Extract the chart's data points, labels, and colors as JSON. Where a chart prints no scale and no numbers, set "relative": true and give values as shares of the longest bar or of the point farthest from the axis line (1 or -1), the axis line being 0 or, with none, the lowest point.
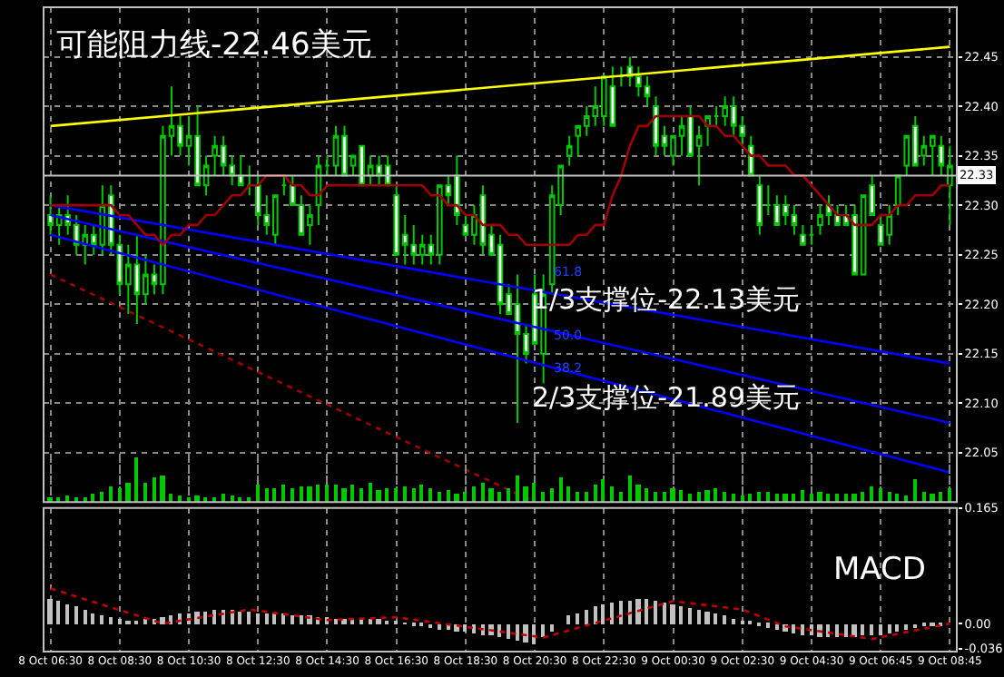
{
  "chart_data": [
    {
      "type": "candlestick",
      "color": "#00c800",
      "categories": [
        null,
        null,
        null,
        null,
        null,
        null,
        null,
        null,
        null,
        null,
        null,
        null,
        null,
        null,
        null,
        null,
        null,
        null,
        null,
        null,
        null,
        null,
        null,
        null,
        null,
        null,
        null,
        null,
        null,
        null,
        null,
        null,
        null,
        null,
        null,
        null,
        null,
        null,
        null,
        null,
        null,
        null,
        null,
        null,
        null,
        null,
        null,
        null,
        null,
        null,
        null,
        null,
        null,
        null,
        null,
        null,
        null,
        null,
        null,
        null,
        null,
        null,
        null,
        null,
        null,
        null,
        null,
        null,
        null,
        null,
        null,
        null,
        null,
        null,
        null,
        null,
        null,
        null,
        null,
        null,
        null,
        null,
        null,
        null,
        null,
        null,
        null,
        null,
        null,
        null,
        null,
        null,
        null,
        null,
        null,
        null,
        null,
        null,
        null,
        null,
        null,
        null,
        null,
        null,
        null
      ],
      "ohlc": [
        [
          22.29,
          22.31,
          22.27,
          22.28
        ],
        [
          22.28,
          22.3,
          22.26,
          22.29
        ],
        [
          22.29,
          22.31,
          22.27,
          22.28
        ],
        [
          22.28,
          22.29,
          22.25,
          22.26
        ],
        [
          22.26,
          22.28,
          22.24,
          22.27
        ],
        [
          22.27,
          22.28,
          22.25,
          22.26
        ],
        [
          22.26,
          22.32,
          22.25,
          22.3
        ],
        [
          22.31,
          22.32,
          22.25,
          22.26
        ],
        [
          22.26,
          22.27,
          22.21,
          22.22
        ],
        [
          22.22,
          22.26,
          22.19,
          22.24
        ],
        [
          22.24,
          22.27,
          22.18,
          22.21
        ],
        [
          22.21,
          22.25,
          22.2,
          22.23
        ],
        [
          22.23,
          22.24,
          22.21,
          22.22
        ],
        [
          22.22,
          22.38,
          22.21,
          22.37
        ],
        [
          22.37,
          22.42,
          22.35,
          22.38
        ],
        [
          22.38,
          22.39,
          22.35,
          22.36
        ],
        [
          22.36,
          22.39,
          22.34,
          22.37
        ],
        [
          22.37,
          22.4,
          22.32,
          22.32
        ],
        [
          22.32,
          22.35,
          22.31,
          22.34
        ],
        [
          22.35,
          22.37,
          22.33,
          22.36
        ],
        [
          22.36,
          22.37,
          22.33,
          22.34
        ],
        [
          22.34,
          22.35,
          22.32,
          22.33
        ],
        [
          22.33,
          22.35,
          22.32,
          22.32
        ],
        [
          22.32,
          22.34,
          22.31,
          22.32
        ],
        [
          22.32,
          22.33,
          22.28,
          22.29
        ],
        [
          22.29,
          22.31,
          22.27,
          22.28
        ],
        [
          22.27,
          22.31,
          22.26,
          22.31
        ],
        [
          22.32,
          22.33,
          22.31,
          22.32
        ],
        [
          22.32,
          22.33,
          22.3,
          22.3
        ],
        [
          22.3,
          22.31,
          22.27,
          22.27
        ],
        [
          22.28,
          22.3,
          22.26,
          22.29
        ],
        [
          22.3,
          22.35,
          22.28,
          22.34
        ],
        [
          22.34,
          22.35,
          22.33,
          22.34
        ],
        [
          22.34,
          22.38,
          22.33,
          22.37
        ],
        [
          22.37,
          22.38,
          22.33,
          22.33
        ],
        [
          22.34,
          22.35,
          22.33,
          22.35
        ],
        [
          22.36,
          22.36,
          22.32,
          22.32
        ],
        [
          22.33,
          22.35,
          22.32,
          22.34
        ],
        [
          22.34,
          22.35,
          22.32,
          22.33
        ],
        [
          22.34,
          22.35,
          22.32,
          22.32
        ],
        [
          22.31,
          22.32,
          22.25,
          22.25
        ],
        [
          22.27,
          22.29,
          22.24,
          22.26
        ],
        [
          22.26,
          22.28,
          22.24,
          22.25
        ],
        [
          22.25,
          22.27,
          22.24,
          22.26
        ],
        [
          22.26,
          22.27,
          22.24,
          22.25
        ],
        [
          22.25,
          22.32,
          22.24,
          22.32
        ],
        [
          22.32,
          22.33,
          22.3,
          22.31
        ],
        [
          22.33,
          22.35,
          22.28,
          22.29
        ],
        [
          22.28,
          22.29,
          22.27,
          22.27
        ],
        [
          22.27,
          22.3,
          22.26,
          22.29
        ],
        [
          22.31,
          22.32,
          22.25,
          22.26
        ],
        [
          22.27,
          22.28,
          22.25,
          22.25
        ],
        [
          22.26,
          22.27,
          22.19,
          22.2
        ],
        [
          22.21,
          22.22,
          22.19,
          22.19
        ],
        [
          22.2,
          22.23,
          22.08,
          22.17
        ],
        [
          22.17,
          22.18,
          22.14,
          22.15
        ],
        [
          22.21,
          22.23,
          22.16,
          22.16
        ],
        [
          22.15,
          22.23,
          22.12,
          22.21
        ],
        [
          22.22,
          22.32,
          22.21,
          22.31
        ],
        [
          22.3,
          22.34,
          22.29,
          22.34
        ],
        [
          22.35,
          22.37,
          22.34,
          22.36
        ],
        [
          22.37,
          22.38,
          22.35,
          22.38
        ],
        [
          22.38,
          22.4,
          22.37,
          22.39
        ],
        [
          22.39,
          22.42,
          22.38,
          22.4
        ],
        [
          22.39,
          22.43,
          22.38,
          22.43
        ],
        [
          22.42,
          22.44,
          22.38,
          22.38
        ],
        [
          22.43,
          22.44,
          22.42,
          22.43
        ],
        [
          22.44,
          22.45,
          22.42,
          22.43
        ],
        [
          22.43,
          22.44,
          22.41,
          22.42
        ],
        [
          22.42,
          22.43,
          22.4,
          22.41
        ],
        [
          22.4,
          22.41,
          22.35,
          22.36
        ],
        [
          22.37,
          22.38,
          22.35,
          22.36
        ],
        [
          22.35,
          22.37,
          22.34,
          22.37
        ],
        [
          22.37,
          22.39,
          22.35,
          22.38
        ],
        [
          22.39,
          22.4,
          22.35,
          22.35
        ],
        [
          22.36,
          22.38,
          22.32,
          22.37
        ],
        [
          22.38,
          22.39,
          22.36,
          22.39
        ],
        [
          22.39,
          22.4,
          22.38,
          22.39
        ],
        [
          22.39,
          22.41,
          22.38,
          22.4
        ],
        [
          22.4,
          22.41,
          22.37,
          22.38
        ],
        [
          22.38,
          22.39,
          22.36,
          22.37
        ],
        [
          22.36,
          22.37,
          22.33,
          22.33
        ],
        [
          22.32,
          22.33,
          22.27,
          22.28
        ],
        [
          22.3,
          22.32,
          22.29,
          22.3
        ],
        [
          22.3,
          22.31,
          22.28,
          22.28
        ],
        [
          22.3,
          22.31,
          22.28,
          22.29
        ],
        [
          22.29,
          22.3,
          22.27,
          22.28
        ],
        [
          22.27,
          22.28,
          22.26,
          22.26
        ],
        [
          22.27,
          22.28,
          22.26,
          22.27
        ],
        [
          22.28,
          22.3,
          22.27,
          22.29
        ],
        [
          22.3,
          22.31,
          22.28,
          22.29
        ],
        [
          22.29,
          22.3,
          22.28,
          22.28
        ],
        [
          22.29,
          22.3,
          22.28,
          22.28
        ],
        [
          22.29,
          22.3,
          22.23,
          22.23
        ],
        [
          22.23,
          22.31,
          22.23,
          22.31
        ],
        [
          22.32,
          22.33,
          22.29,
          22.29
        ],
        [
          22.28,
          22.29,
          22.26,
          22.26
        ],
        [
          22.27,
          22.3,
          22.26,
          22.29
        ],
        [
          22.3,
          22.33,
          22.29,
          22.33
        ],
        [
          22.34,
          22.37,
          22.33,
          22.37
        ],
        [
          22.38,
          22.39,
          22.34,
          22.34
        ],
        [
          22.35,
          22.37,
          22.34,
          22.36
        ],
        [
          22.36,
          22.37,
          22.33,
          22.37
        ],
        [
          22.36,
          22.37,
          22.33,
          22.34
        ],
        [
          22.32,
          22.36,
          22.28,
          22.34
        ]
      ],
      "series": [
        {
          "type": "line",
          "color": "#ffff00",
          "values": [
            22.38,
            null,
            null,
            null,
            null,
            null,
            null,
            null,
            null,
            null,
            null,
            null,
            null,
            null,
            null,
            null,
            null,
            null,
            null,
            null,
            null,
            null,
            null,
            null,
            null,
            null,
            null,
            null,
            null,
            null,
            null,
            null,
            null,
            null,
            null,
            null,
            null,
            null,
            null,
            null,
            null,
            null,
            null,
            null,
            null,
            null,
            null,
            null,
            null,
            null,
            null,
            null,
            null,
            null,
            null,
            null,
            null,
            null,
            null,
            null,
            null,
            null,
            null,
            null,
            null,
            null,
            null,
            null,
            null,
            null,
            null,
            null,
            null,
            null,
            null,
            null,
            null,
            null,
            null,
            null,
            null,
            null,
            null,
            null,
            null,
            null,
            null,
            null,
            null,
            null,
            null,
            null,
            null,
            null,
            null,
            null,
            null,
            null,
            null,
            null,
            null,
            null,
            null,
            null,
            22.46
          ]
        },
        {
          "type": "line",
          "color": "#0000ff",
          "values": [
            22.3,
            null,
            null,
            null,
            null,
            null,
            null,
            null,
            null,
            null,
            null,
            null,
            null,
            null,
            null,
            null,
            null,
            null,
            null,
            null,
            null,
            null,
            null,
            null,
            null,
            null,
            null,
            null,
            null,
            null,
            null,
            null,
            null,
            null,
            null,
            null,
            null,
            null,
            null,
            null,
            null,
            null,
            null,
            null,
            null,
            null,
            null,
            null,
            null,
            null,
            null,
            null,
            null,
            null,
            null,
            null,
            null,
            null,
            null,
            null,
            null,
            null,
            null,
            null,
            null,
            null,
            null,
            null,
            null,
            null,
            null,
            null,
            null,
            null,
            null,
            null,
            null,
            null,
            null,
            null,
            null,
            null,
            null,
            null,
            null,
            null,
            null,
            null,
            null,
            null,
            null,
            null,
            null,
            null,
            null,
            null,
            null,
            null,
            null,
            null,
            null,
            null,
            null,
            null,
            22.14
          ]
        },
        {
          "type": "line",
          "color": "#0000ff",
          "values": [
            22.29,
            null,
            null,
            null,
            null,
            null,
            null,
            null,
            null,
            null,
            null,
            null,
            null,
            null,
            null,
            null,
            null,
            null,
            null,
            null,
            null,
            null,
            null,
            null,
            null,
            null,
            null,
            null,
            null,
            null,
            null,
            null,
            null,
            null,
            null,
            null,
            null,
            null,
            null,
            null,
            null,
            null,
            null,
            null,
            null,
            null,
            null,
            null,
            null,
            null,
            null,
            null,
            null,
            null,
            null,
            null,
            null,
            null,
            null,
            null,
            null,
            null,
            null,
            null,
            null,
            null,
            null,
            null,
            null,
            null,
            null,
            null,
            null,
            null,
            null,
            null,
            null,
            null,
            null,
            null,
            null,
            null,
            null,
            null,
            null,
            null,
            null,
            null,
            null,
            null,
            null,
            null,
            null,
            null,
            null,
            null,
            null,
            null,
            null,
            null,
            null,
            null,
            null,
            null,
            22.08
          ]
        },
        {
          "type": "line",
          "color": "#0000ff",
          "values": [
            22.27,
            null,
            null,
            null,
            null,
            null,
            null,
            null,
            null,
            null,
            null,
            null,
            null,
            null,
            null,
            null,
            null,
            null,
            null,
            null,
            null,
            null,
            null,
            null,
            null,
            null,
            null,
            null,
            null,
            null,
            null,
            null,
            null,
            null,
            null,
            null,
            null,
            null,
            null,
            null,
            null,
            null,
            null,
            null,
            null,
            null,
            null,
            null,
            null,
            null,
            null,
            null,
            null,
            null,
            null,
            null,
            null,
            null,
            null,
            null,
            null,
            null,
            null,
            null,
            null,
            null,
            null,
            null,
            null,
            null,
            null,
            null,
            null,
            null,
            null,
            null,
            null,
            null,
            null,
            null,
            null,
            null,
            null,
            null,
            null,
            null,
            null,
            null,
            null,
            null,
            null,
            null,
            null,
            null,
            null,
            null,
            null,
            null,
            null,
            null,
            null,
            null,
            null,
            null,
            22.03
          ]
        },
        {
          "type": "line",
          "color": "#a00000",
          "line_style": "dotted",
          "values": [
            22.23,
            null,
            null,
            null,
            null,
            null,
            null,
            null,
            null,
            null,
            null,
            null,
            null,
            null,
            null,
            null,
            null,
            null,
            null,
            null,
            null,
            null,
            null,
            null,
            null,
            null,
            null,
            null,
            null,
            null,
            null,
            null,
            null,
            null,
            null,
            null,
            null,
            null,
            null,
            null,
            null,
            null,
            null,
            null,
            null,
            null,
            null,
            null,
            null,
            null,
            null,
            null,
            null,
            null,
            null,
            null,
            22.0,
            null,
            null,
            null,
            null,
            null,
            null,
            null,
            null,
            null,
            null,
            null,
            null,
            null,
            null,
            null,
            null,
            null,
            null,
            null,
            null,
            null,
            null,
            null,
            null,
            null,
            null,
            null,
            null,
            null,
            null,
            null,
            null,
            null,
            null,
            null,
            null,
            null,
            null,
            null,
            null,
            null,
            null,
            null,
            null,
            null,
            null,
            null,
            null
          ]
        },
        {
          "type": "line",
          "color": "#a00000",
          "values": [
            22.3,
            22.3,
            22.3,
            22.3,
            22.3,
            22.3,
            22.3,
            22.3,
            22.29,
            22.29,
            22.28,
            22.27,
            22.27,
            22.26,
            22.27,
            22.27,
            22.28,
            22.28,
            22.29,
            22.29,
            22.3,
            22.31,
            22.31,
            22.32,
            22.32,
            22.33,
            22.33,
            22.33,
            22.32,
            22.32,
            22.31,
            22.31,
            22.32,
            22.32,
            22.32,
            22.32,
            22.32,
            22.32,
            22.32,
            22.32,
            22.32,
            22.32,
            22.32,
            22.32,
            22.31,
            22.31,
            22.3,
            22.3,
            22.29,
            22.29,
            22.28,
            22.28,
            22.28,
            22.27,
            22.27,
            22.26,
            22.26,
            22.26,
            22.26,
            22.26,
            22.26,
            22.27,
            22.27,
            22.28,
            22.28,
            22.31,
            22.33,
            22.36,
            22.38,
            22.38,
            22.39,
            22.39,
            22.39,
            22.39,
            22.39,
            22.39,
            22.38,
            22.38,
            22.37,
            22.37,
            22.36,
            22.35,
            22.35,
            22.34,
            22.34,
            22.34,
            22.33,
            22.33,
            22.32,
            22.31,
            22.3,
            22.29,
            22.29,
            22.28,
            22.28,
            22.28,
            22.29,
            22.29,
            22.3,
            22.3,
            22.31,
            22.31,
            22.31,
            22.32,
            22.32
          ]
        }
      ],
      "ref_lines": [
        {
          "axis": "y",
          "value": 22.33,
          "label": "22.33",
          "color": "#c0c0c0"
        }
      ],
      "annotations": [
        "可能阻力线-22.46美元",
        "1/3支撑位-22.13美元",
        "2/3支撑位-21.89美元",
        "61.8",
        "50.0",
        "38.2"
      ],
      "ylim": [
        22.0,
        22.5
      ],
      "yticks": [
        {
          "value": 22.05,
          "label": "22.05"
        },
        {
          "value": 22.1,
          "label": "22.10"
        },
        {
          "value": 22.15,
          "label": "22.15"
        },
        {
          "value": 22.2,
          "label": "22.20"
        },
        {
          "value": 22.25,
          "label": "22.25"
        },
        {
          "value": 22.3,
          "label": "22.30"
        },
        {
          "value": 22.35,
          "label": "22.35"
        },
        {
          "value": 22.4,
          "label": "22.40"
        },
        {
          "value": 22.45,
          "label": "22.45"
        }
      ],
      "tick_labels": "y",
      "grid": true
    },
    {
      "type": "bar",
      "relative": true,
      "color": "#00c800",
      "categories": [
        null,
        null,
        null,
        null,
        null,
        null,
        null,
        null,
        null,
        null,
        null,
        null,
        null,
        null,
        null,
        null,
        null,
        null,
        null,
        null,
        null,
        null,
        null,
        null,
        null,
        null,
        null,
        null,
        null,
        null,
        null,
        null,
        null,
        null,
        null,
        null,
        null,
        null,
        null,
        null,
        null,
        null,
        null,
        null,
        null,
        null,
        null,
        null,
        null,
        null,
        null,
        null,
        null,
        null,
        null,
        null,
        null,
        null,
        null,
        null,
        null,
        null,
        null,
        null,
        null,
        null,
        null,
        null,
        null,
        null,
        null,
        null,
        null,
        null,
        null,
        null,
        null,
        null,
        null,
        null,
        null,
        null,
        null,
        null,
        null,
        null,
        null,
        null,
        null,
        null,
        null,
        null,
        null,
        null,
        null,
        null,
        null,
        null,
        null,
        null,
        null,
        null,
        null,
        null,
        null
      ],
      "values": [
        0.1,
        0.12,
        0.15,
        0.1,
        0.12,
        0.18,
        0.22,
        0.35,
        0.3,
        0.45,
        1.0,
        0.45,
        0.55,
        0.6,
        0.2,
        0.15,
        0.1,
        0.15,
        0.12,
        0.1,
        0.18,
        0.15,
        0.12,
        0.1,
        0.4,
        0.3,
        0.32,
        0.38,
        0.3,
        0.35,
        0.35,
        0.38,
        0.38,
        0.4,
        0.3,
        0.38,
        0.32,
        0.42,
        0.28,
        0.3,
        0.3,
        0.35,
        0.3,
        0.4,
        0.3,
        0.25,
        0.28,
        0.2,
        0.25,
        0.35,
        0.45,
        0.3,
        0.25,
        0.3,
        0.6,
        0.35,
        0.45,
        0.25,
        0.3,
        0.55,
        0.35,
        0.25,
        0.25,
        0.4,
        0.5,
        0.35,
        0.25,
        0.6,
        0.4,
        0.3,
        0.25,
        0.22,
        0.3,
        0.28,
        0.2,
        0.25,
        0.28,
        0.3,
        0.22,
        0.2,
        0.15,
        0.2,
        0.22,
        0.25,
        0.2,
        0.18,
        0.2,
        0.28,
        0.2,
        0.22,
        0.2,
        0.18,
        0.2,
        0.2,
        0.22,
        0.35,
        0.3,
        0.22,
        0.2,
        0.15,
        0.5,
        0.25,
        0.2,
        0.22,
        0.3
      ],
      "tick_labels": false,
      "grid": "x"
    },
    {
      "type": "bar",
      "categories": [
        "8 Oct 06:30",
        null,
        null,
        null,
        null,
        null,
        null,
        null,
        "8 Oct 08:30",
        null,
        null,
        null,
        null,
        null,
        null,
        null,
        "8 Oct 10:30",
        null,
        null,
        null,
        null,
        null,
        null,
        null,
        "8 Oct 12:30",
        null,
        null,
        null,
        null,
        null,
        null,
        null,
        "8 Oct 14:30",
        null,
        null,
        null,
        null,
        null,
        null,
        null,
        "8 Oct 16:30",
        null,
        null,
        null,
        null,
        null,
        null,
        null,
        "8 Oct 18:30",
        null,
        null,
        null,
        null,
        null,
        null,
        null,
        "8 Oct 20:30",
        null,
        null,
        null,
        null,
        null,
        null,
        null,
        "8 Oct 22:30",
        null,
        null,
        null,
        null,
        null,
        null,
        null,
        "9 Oct 00:30",
        null,
        null,
        null,
        null,
        null,
        null,
        null,
        "9 Oct 02:30",
        null,
        null,
        null,
        null,
        null,
        null,
        null,
        "9 Oct 04:30",
        null,
        null,
        null,
        null,
        null,
        null,
        null,
        "9 Oct 06:45",
        null,
        null,
        null,
        null,
        null,
        null,
        null,
        "9 Oct 08:45"
      ],
      "series": [
        {
          "type": "bar",
          "color": "#c0c0c0",
          "values": [
            0.036,
            0.032,
            0.028,
            0.024,
            0.02,
            0.016,
            0.012,
            0.009,
            0.006,
            0.004,
            0.004,
            0.006,
            0.008,
            0.01,
            0.012,
            0.014,
            0.016,
            0.017,
            0.018,
            0.019,
            0.02,
            0.019,
            0.018,
            0.017,
            0.016,
            0.016,
            0.015,
            0.014,
            0.013,
            0.012,
            0.011,
            0.01,
            0.009,
            0.008,
            0.008,
            0.007,
            0.007,
            0.006,
            0.006,
            0.005,
            0.003,
            0.001,
            -0.001,
            -0.004,
            -0.006,
            -0.008,
            -0.009,
            -0.011,
            -0.012,
            -0.014,
            -0.015,
            -0.017,
            -0.019,
            -0.021,
            -0.024,
            -0.027,
            -0.029,
            -0.02,
            -0.01,
            0.0,
            0.012,
            0.016,
            0.02,
            0.024,
            0.027,
            0.03,
            0.032,
            0.034,
            0.035,
            0.036,
            0.033,
            0.031,
            0.028,
            0.026,
            0.023,
            0.02,
            0.017,
            0.014,
            0.011,
            0.008,
            0.005,
            0.002,
            -0.002,
            -0.005,
            -0.009,
            -0.012,
            -0.014,
            -0.015,
            -0.017,
            -0.018,
            -0.02,
            -0.019,
            -0.019,
            -0.018,
            -0.017,
            -0.016,
            -0.015,
            -0.013,
            -0.011,
            -0.009,
            -0.006,
            -0.004,
            -0.003,
            -0.001,
            0.0
          ]
        },
        {
          "type": "line",
          "color": "#c00000",
          "line_style": "dotted",
          "values": [
            0.05,
            null,
            null,
            null,
            null,
            null,
            null,
            null,
            null,
            null,
            null,
            null,
            null,
            0.0,
            null,
            null,
            null,
            null,
            null,
            null,
            null,
            null,
            null,
            0.02,
            null,
            null,
            null,
            null,
            null,
            null,
            null,
            null,
            0.005,
            null,
            null,
            null,
            null,
            null,
            null,
            null,
            0.009,
            null,
            null,
            null,
            null,
            null,
            null,
            null,
            null,
            null,
            null,
            null,
            null,
            null,
            null,
            null,
            null,
            -0.02,
            null,
            null,
            null,
            null,
            null,
            null,
            null,
            null,
            null,
            null,
            null,
            null,
            null,
            null,
            0.032,
            null,
            null,
            null,
            null,
            null,
            null,
            null,
            0.02,
            null,
            null,
            null,
            null,
            -0.004,
            null,
            null,
            null,
            null,
            null,
            null,
            null,
            null,
            null,
            -0.022,
            null,
            null,
            null,
            null,
            null,
            null,
            null,
            null,
            0.0
          ]
        }
      ],
      "annotations": [
        "MACD"
      ],
      "ylim": [
        -0.04,
        0.165
      ],
      "yticks": [
        0.165,
        {
          "value": 0,
          "label": "0.00"
        },
        -0.036
      ],
      "grid": "x"
    }
  ]
}
